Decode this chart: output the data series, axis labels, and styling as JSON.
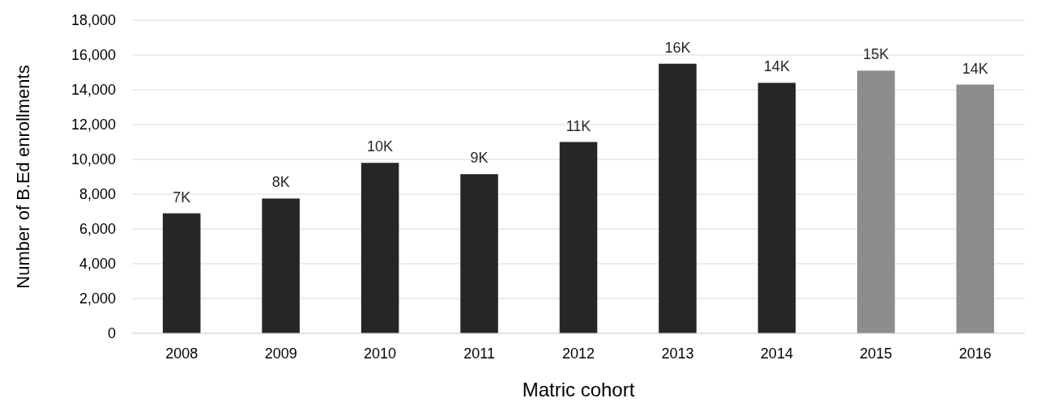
{
  "chart_data": {
    "type": "bar",
    "xlabel": "Matric cohort",
    "ylabel": "Number of B.Ed enrollments",
    "categories": [
      "2008",
      "2009",
      "2010",
      "2011",
      "2012",
      "2013",
      "2014",
      "2015",
      "2016"
    ],
    "values": [
      6900,
      7750,
      9800,
      9150,
      11000,
      15500,
      14400,
      15100,
      14300
    ],
    "colors": [
      "#262626",
      "#262626",
      "#262626",
      "#262626",
      "#262626",
      "#262626",
      "#262626",
      "#8c8c8c",
      "#8c8c8c"
    ],
    "value_labels": [
      "7K",
      "8K",
      "10K",
      "9K",
      "11K",
      "16K",
      "14K",
      "15K",
      "14K"
    ],
    "ylim": [
      0,
      18000
    ],
    "yticks": [
      {
        "value": 0,
        "label": "0"
      },
      {
        "value": 2000,
        "label": "2,000"
      },
      {
        "value": 4000,
        "label": "4,000"
      },
      {
        "value": 6000,
        "label": "6,000"
      },
      {
        "value": 8000,
        "label": "8,000"
      },
      {
        "value": 10000,
        "label": "10,000"
      },
      {
        "value": 12000,
        "label": "12,000"
      },
      {
        "value": 14000,
        "label": "14,000"
      },
      {
        "value": 16000,
        "label": "16,000"
      },
      {
        "value": 18000,
        "label": "18,000"
      }
    ],
    "grid": "y"
  }
}
